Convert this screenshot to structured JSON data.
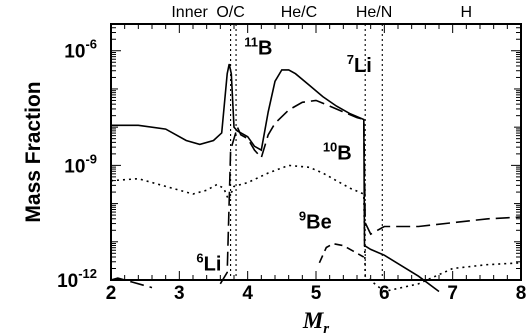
{
  "chart_data": {
    "type": "line",
    "ylabel": "Mass Fraction",
    "xlabel_main": "M",
    "xlabel_sub": "r",
    "xlim": [
      2,
      8
    ],
    "ylim_log10": [
      -12,
      -5.3
    ],
    "y_scale": "log",
    "x_ticks": [
      "2",
      "3",
      "4",
      "5",
      "6",
      "7",
      "8"
    ],
    "y_ticks": [
      {
        "base": "10",
        "exp": "-6",
        "log10": -6
      },
      {
        "base": "10",
        "exp": "-9",
        "log10": -9
      },
      {
        "base": "10",
        "exp": "-12",
        "log10": -12
      }
    ],
    "zones": [
      {
        "label": "Inner",
        "x_center": 3.15
      },
      {
        "label": "O/C",
        "x_center": 3.75
      },
      {
        "label": "He/C",
        "x_center": 4.75
      },
      {
        "label": "He/N",
        "x_center": 5.85
      },
      {
        "label": "H",
        "x_center": 7.2
      }
    ],
    "zone_boundaries": [
      3.75,
      3.83,
      5.72,
      5.97
    ],
    "series": [
      {
        "name": "11B",
        "mass": "11",
        "element": "B",
        "style": "solid",
        "label_pos": {
          "x": 3.95,
          "y": -6.1
        },
        "points": [
          [
            2.0,
            -7.95
          ],
          [
            2.4,
            -7.95
          ],
          [
            2.8,
            -8.05
          ],
          [
            3.1,
            -8.35
          ],
          [
            3.3,
            -8.45
          ],
          [
            3.5,
            -8.35
          ],
          [
            3.62,
            -8.15
          ],
          [
            3.7,
            -6.6
          ],
          [
            3.73,
            -6.35
          ],
          [
            3.76,
            -6.6
          ],
          [
            3.8,
            -8.0
          ],
          [
            3.85,
            -8.1
          ],
          [
            4.0,
            -8.25
          ],
          [
            4.1,
            -8.5
          ],
          [
            4.2,
            -8.6
          ],
          [
            4.3,
            -7.6
          ],
          [
            4.4,
            -6.8
          ],
          [
            4.5,
            -6.5
          ],
          [
            4.6,
            -6.5
          ],
          [
            4.7,
            -6.6
          ],
          [
            4.9,
            -6.9
          ],
          [
            5.1,
            -7.2
          ],
          [
            5.3,
            -7.45
          ],
          [
            5.5,
            -7.65
          ],
          [
            5.7,
            -7.8
          ],
          [
            5.71,
            -11.1
          ],
          [
            5.8,
            -11.2
          ],
          [
            6.0,
            -11.35
          ],
          [
            6.5,
            -11.9
          ],
          [
            6.8,
            -12.3
          ]
        ]
      },
      {
        "name": "7Li",
        "mass": "7",
        "element": "Li",
        "style": "longdash",
        "label_pos": {
          "x": 5.45,
          "y": -6.55
        },
        "points": [
          [
            3.6,
            -12.1
          ],
          [
            3.7,
            -11.8
          ],
          [
            3.75,
            -8.6
          ],
          [
            3.8,
            -8.3
          ],
          [
            3.85,
            -8.0
          ],
          [
            3.9,
            -8.2
          ],
          [
            4.0,
            -8.3
          ],
          [
            4.1,
            -8.6
          ],
          [
            4.2,
            -8.8
          ],
          [
            4.3,
            -8.2
          ],
          [
            4.4,
            -7.9
          ],
          [
            4.6,
            -7.55
          ],
          [
            4.8,
            -7.35
          ],
          [
            5.0,
            -7.3
          ],
          [
            5.2,
            -7.45
          ],
          [
            5.4,
            -7.6
          ],
          [
            5.6,
            -7.75
          ],
          [
            5.7,
            -7.8
          ],
          [
            5.72,
            -10.5
          ],
          [
            5.8,
            -10.8
          ],
          [
            6.0,
            -10.6
          ],
          [
            6.5,
            -10.6
          ],
          [
            7.0,
            -10.5
          ],
          [
            7.5,
            -10.4
          ],
          [
            8.0,
            -10.35
          ]
        ]
      },
      {
        "name": "10B",
        "mass": "10",
        "element": "B",
        "style": "dotted",
        "label_pos": {
          "x": 5.1,
          "y": -8.85
        },
        "points": [
          [
            2.0,
            -9.4
          ],
          [
            2.4,
            -9.35
          ],
          [
            2.8,
            -9.55
          ],
          [
            3.2,
            -9.75
          ],
          [
            3.4,
            -9.65
          ],
          [
            3.55,
            -9.5
          ],
          [
            3.65,
            -9.6
          ],
          [
            3.72,
            -9.9
          ],
          [
            3.8,
            -9.55
          ],
          [
            4.0,
            -9.45
          ],
          [
            4.3,
            -9.2
          ],
          [
            4.6,
            -9.0
          ],
          [
            4.9,
            -9.05
          ],
          [
            5.1,
            -9.2
          ],
          [
            5.3,
            -9.4
          ],
          [
            5.5,
            -9.6
          ],
          [
            5.7,
            -9.75
          ],
          [
            5.72,
            -11.9
          ],
          [
            6.0,
            -12.3
          ],
          [
            6.5,
            -12.1
          ],
          [
            7.0,
            -11.7
          ],
          [
            7.5,
            -11.6
          ],
          [
            8.0,
            -11.55
          ]
        ]
      },
      {
        "name": "9Be",
        "mass": "9",
        "element": "Be",
        "style": "dash",
        "label_pos": {
          "x": 4.75,
          "y": -10.65
        },
        "points": [
          [
            5.05,
            -11.55
          ],
          [
            5.15,
            -11.15
          ],
          [
            5.25,
            -11.05
          ],
          [
            5.4,
            -11.1
          ],
          [
            5.55,
            -11.25
          ],
          [
            5.7,
            -11.4
          ]
        ]
      },
      {
        "name": "6Li",
        "mass": "6",
        "element": "Li",
        "style": "longdash",
        "label_pos": {
          "x": 3.25,
          "y": -11.75
        },
        "points": [
          [
            2.0,
            -12.0
          ],
          [
            2.1,
            -11.95
          ],
          [
            2.3,
            -12.05
          ],
          [
            2.6,
            -12.2
          ]
        ]
      }
    ]
  }
}
